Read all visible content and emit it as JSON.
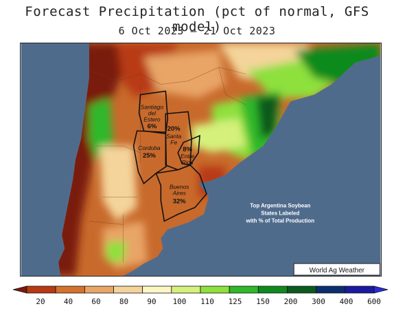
{
  "title": "Forecast Precipitation (pct of normal, GFS model)",
  "date_range": "6 Oct 2023 – 21 Oct 2023",
  "credit": "World Ag Weather",
  "note_lines": [
    "Top Argentina Soybean",
    "States Labeled",
    "with % of Total Production"
  ],
  "states": [
    {
      "name_lines": [
        "Santiago",
        "del",
        "Estero"
      ],
      "pct": "6%"
    },
    {
      "name_lines": [
        "Santa",
        "Fe"
      ],
      "pct": "20%"
    },
    {
      "name_lines": [
        "Cordoba"
      ],
      "pct": "25%"
    },
    {
      "name_lines": [
        "Entre",
        "Rios"
      ],
      "pct": "8%"
    },
    {
      "name_lines": [
        "Buenos",
        "Aires"
      ],
      "pct": "32%"
    }
  ],
  "legend": {
    "ticks": [
      "20",
      "40",
      "60",
      "80",
      "90",
      "100",
      "110",
      "125",
      "150",
      "200",
      "300",
      "400",
      "600"
    ],
    "colors": [
      "#7a1a0e",
      "#b83a12",
      "#d4722e",
      "#e8a566",
      "#f4d49a",
      "#fbf6c4",
      "#d6f07c",
      "#8ee03c",
      "#2fb82a",
      "#0e8a1f",
      "#0a5a1e",
      "#0a2f6e",
      "#1a1aa0",
      "#2b2bd8"
    ]
  },
  "colors": {
    "ocean": "#4f6b8c",
    "state_border": "#111111"
  }
}
